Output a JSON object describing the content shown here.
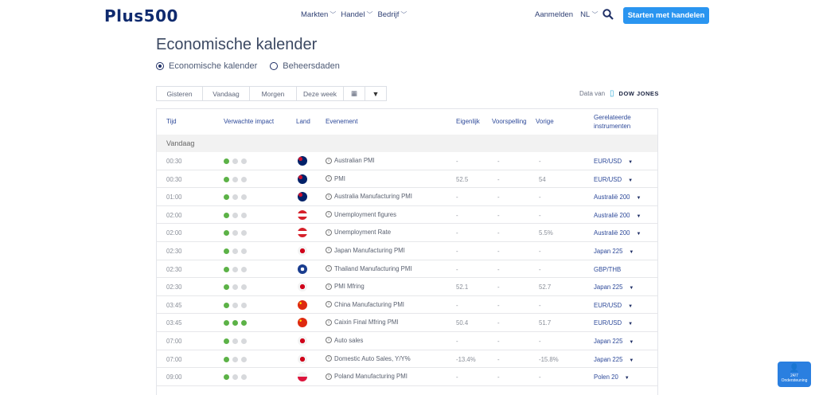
{
  "header": {
    "logo": "Plus500",
    "nav": [
      "Markten",
      "Handel",
      "Bedrijf"
    ],
    "login": "Aanmelden",
    "lang": "NL",
    "cta": "Starten met handelen"
  },
  "page": {
    "title": "Economische kalender",
    "radios": [
      {
        "label": "Economische kalender",
        "selected": true
      },
      {
        "label": "Beheersdaden",
        "selected": false
      }
    ],
    "tabs": [
      "Gisteren",
      "Vandaag",
      "Morgen",
      "Deze week"
    ],
    "data_from": "Data van",
    "provider": "DOW JONES"
  },
  "table": {
    "headers": {
      "time": "Tijd",
      "impact": "Verwachte impact",
      "country": "Land",
      "event": "Evenement",
      "actual": "Eigenlijk",
      "forecast": "Voorspelling",
      "previous": "Vorige",
      "instruments": "Gerelateerde instrumenten"
    },
    "group": "Vandaag",
    "rows": [
      {
        "time": "00:30",
        "impact": 1,
        "country": "AU",
        "event": "Australian PMI",
        "actual": "-",
        "forecast": "-",
        "previous": "-",
        "instrument": "EUR/USD",
        "dropdown": true
      },
      {
        "time": "00:30",
        "impact": 1,
        "country": "AU",
        "event": "PMI",
        "actual": "52.5",
        "forecast": "-",
        "previous": "54",
        "instrument": "EUR/USD",
        "dropdown": true
      },
      {
        "time": "01:00",
        "impact": 1,
        "country": "AU",
        "event": "Australia Manufacturing PMI",
        "actual": "-",
        "forecast": "-",
        "previous": "-",
        "instrument": "Australië 200",
        "dropdown": true
      },
      {
        "time": "02:00",
        "impact": 1,
        "country": "AT",
        "event": "Unemployment figures",
        "actual": "-",
        "forecast": "-",
        "previous": "-",
        "instrument": "Australië 200",
        "dropdown": true
      },
      {
        "time": "02:00",
        "impact": 1,
        "country": "AT",
        "event": "Unemployment Rate",
        "actual": "-",
        "forecast": "-",
        "previous": "5.5%",
        "instrument": "Australië 200",
        "dropdown": true
      },
      {
        "time": "02:30",
        "impact": 1,
        "country": "JP",
        "event": "Japan Manufacturing PMI",
        "actual": "-",
        "forecast": "-",
        "previous": "-",
        "instrument": "Japan 225",
        "dropdown": true
      },
      {
        "time": "02:30",
        "impact": 1,
        "country": "TH",
        "event": "Thailand Manufacturing PMI",
        "actual": "-",
        "forecast": "-",
        "previous": "-",
        "instrument": "GBP/THB",
        "dropdown": false
      },
      {
        "time": "02:30",
        "impact": 1,
        "country": "JP",
        "event": "PMI Mfring",
        "actual": "52.1",
        "forecast": "-",
        "previous": "52.7",
        "instrument": "Japan 225",
        "dropdown": true
      },
      {
        "time": "03:45",
        "impact": 1,
        "country": "CN",
        "event": "China Manufacturing PMI",
        "actual": "-",
        "forecast": "-",
        "previous": "-",
        "instrument": "EUR/USD",
        "dropdown": true
      },
      {
        "time": "03:45",
        "impact": 3,
        "country": "CN",
        "event": "Caixin Final Mfring PMI",
        "actual": "50.4",
        "forecast": "-",
        "previous": "51.7",
        "instrument": "EUR/USD",
        "dropdown": true
      },
      {
        "time": "07:00",
        "impact": 1,
        "country": "JP",
        "event": "Auto sales",
        "actual": "-",
        "forecast": "-",
        "previous": "-",
        "instrument": "Japan 225",
        "dropdown": true
      },
      {
        "time": "07:00",
        "impact": 1,
        "country": "JP",
        "event": "Domestic Auto Sales, Y/Y%",
        "actual": "-13.4%",
        "forecast": "-",
        "previous": "-15.8%",
        "instrument": "Japan 225",
        "dropdown": true
      },
      {
        "time": "09:00",
        "impact": 1,
        "country": "PL",
        "event": "Poland Manufacturing PMI",
        "actual": "-",
        "forecast": "-",
        "previous": "-",
        "instrument": "Polen 20",
        "dropdown": true
      }
    ]
  },
  "support": {
    "line1": "24/7",
    "line2": "Ondersteuning"
  },
  "colors": {
    "brand": "#0f2a6e",
    "cta": "#2a95f0",
    "impact_on": "#5cb247",
    "impact_off": "#d7d9dc",
    "link": "#2e4a9a"
  }
}
